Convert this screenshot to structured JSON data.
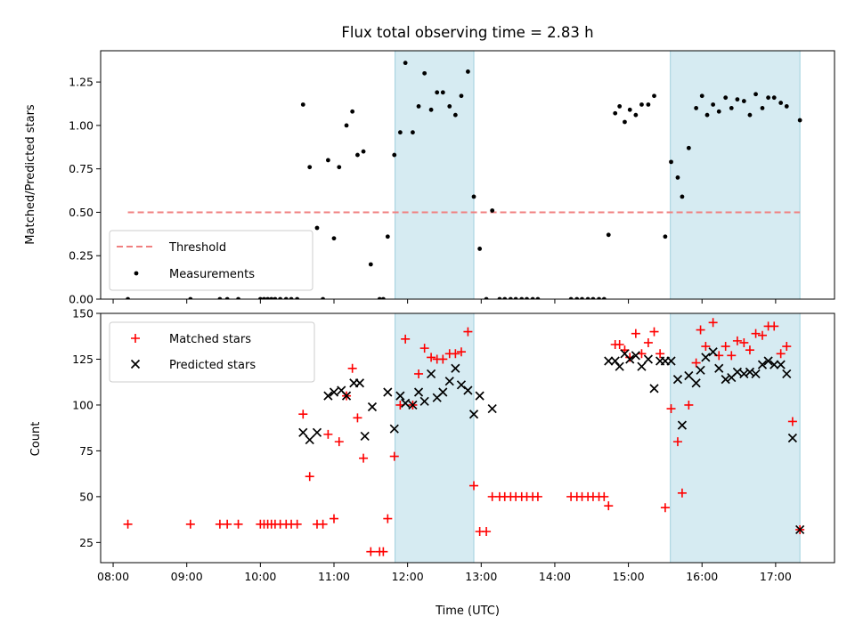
{
  "chart_data": [
    {
      "type": "scatter",
      "title": "Flux total observing time = 2.83 h",
      "xlabel": "",
      "ylabel": "Matched/Predicted stars",
      "xlim": [
        7.83,
        17.8
      ],
      "ylim": [
        0,
        1.43
      ],
      "xticks": [
        8,
        9,
        10,
        11,
        12,
        13,
        14,
        15,
        16,
        17
      ],
      "yticks": [
        0.0,
        0.25,
        0.5,
        0.75,
        1.0,
        1.25
      ],
      "ytick_labels": [
        "0.00",
        "0.25",
        "0.50",
        "0.75",
        "1.00",
        "1.25"
      ],
      "shaded_spans": [
        [
          11.83,
          12.9
        ],
        [
          15.57,
          17.33
        ]
      ],
      "threshold": {
        "name": "Threshold",
        "value": 0.5,
        "x_range": [
          8.2,
          17.33
        ],
        "color": "#f08080"
      },
      "legend_position": "lower-left",
      "series": [
        {
          "name": "Measurements",
          "color": "#000000",
          "marker": "dot",
          "points": [
            [
              8.2,
              0
            ],
            [
              9.05,
              0
            ],
            [
              9.45,
              0
            ],
            [
              9.55,
              0
            ],
            [
              9.7,
              0
            ],
            [
              10.0,
              0
            ],
            [
              10.05,
              0
            ],
            [
              10.1,
              0
            ],
            [
              10.15,
              0
            ],
            [
              10.2,
              0
            ],
            [
              10.27,
              0
            ],
            [
              10.35,
              0
            ],
            [
              10.42,
              0
            ],
            [
              10.5,
              0
            ],
            [
              10.58,
              1.12
            ],
            [
              10.67,
              0.76
            ],
            [
              10.77,
              0.41
            ],
            [
              10.85,
              0
            ],
            [
              10.92,
              0.8
            ],
            [
              11.0,
              0.35
            ],
            [
              11.07,
              0.76
            ],
            [
              11.17,
              1.0
            ],
            [
              11.25,
              1.08
            ],
            [
              11.32,
              0.83
            ],
            [
              11.4,
              0.85
            ],
            [
              11.5,
              0.2
            ],
            [
              11.62,
              0
            ],
            [
              11.67,
              0
            ],
            [
              11.73,
              0.36
            ],
            [
              11.82,
              0.83
            ],
            [
              11.9,
              0.96
            ],
            [
              11.97,
              1.36
            ],
            [
              12.07,
              0.96
            ],
            [
              12.15,
              1.11
            ],
            [
              12.23,
              1.3
            ],
            [
              12.32,
              1.09
            ],
            [
              12.4,
              1.19
            ],
            [
              12.48,
              1.19
            ],
            [
              12.57,
              1.11
            ],
            [
              12.65,
              1.06
            ],
            [
              12.73,
              1.17
            ],
            [
              12.82,
              1.31
            ],
            [
              12.9,
              0.59
            ],
            [
              12.98,
              0.29
            ],
            [
              13.07,
              0
            ],
            [
              13.15,
              0.51
            ],
            [
              13.25,
              0
            ],
            [
              13.32,
              0
            ],
            [
              13.4,
              0
            ],
            [
              13.47,
              0
            ],
            [
              13.55,
              0
            ],
            [
              13.62,
              0
            ],
            [
              13.7,
              0
            ],
            [
              13.77,
              0
            ],
            [
              14.22,
              0
            ],
            [
              14.3,
              0
            ],
            [
              14.37,
              0
            ],
            [
              14.45,
              0
            ],
            [
              14.52,
              0
            ],
            [
              14.6,
              0
            ],
            [
              14.67,
              0
            ],
            [
              14.73,
              0.37
            ],
            [
              14.82,
              1.07
            ],
            [
              14.88,
              1.11
            ],
            [
              14.95,
              1.02
            ],
            [
              15.02,
              1.09
            ],
            [
              15.1,
              1.06
            ],
            [
              15.18,
              1.12
            ],
            [
              15.27,
              1.12
            ],
            [
              15.35,
              1.17
            ],
            [
              15.5,
              0.36
            ],
            [
              15.58,
              0.79
            ],
            [
              15.67,
              0.7
            ],
            [
              15.73,
              0.59
            ],
            [
              15.82,
              0.87
            ],
            [
              15.92,
              1.1
            ],
            [
              16.0,
              1.17
            ],
            [
              16.07,
              1.06
            ],
            [
              16.15,
              1.12
            ],
            [
              16.23,
              1.08
            ],
            [
              16.32,
              1.16
            ],
            [
              16.4,
              1.1
            ],
            [
              16.48,
              1.15
            ],
            [
              16.57,
              1.14
            ],
            [
              16.65,
              1.06
            ],
            [
              16.73,
              1.18
            ],
            [
              16.82,
              1.1
            ],
            [
              16.9,
              1.16
            ],
            [
              16.98,
              1.16
            ],
            [
              17.07,
              1.13
            ],
            [
              17.15,
              1.11
            ],
            [
              17.33,
              1.03
            ]
          ]
        }
      ]
    },
    {
      "type": "scatter",
      "title": "",
      "xlabel": "Time (UTC)",
      "ylabel": "Count",
      "xlim": [
        7.83,
        17.8
      ],
      "ylim": [
        14,
        150
      ],
      "xticks": [
        8,
        9,
        10,
        11,
        12,
        13,
        14,
        15,
        16,
        17
      ],
      "xtick_labels": [
        "08:00",
        "09:00",
        "10:00",
        "11:00",
        "12:00",
        "13:00",
        "14:00",
        "15:00",
        "16:00",
        "17:00"
      ],
      "yticks": [
        25,
        50,
        75,
        100,
        125,
        150
      ],
      "shaded_spans": [
        [
          11.83,
          12.9
        ],
        [
          15.57,
          17.33
        ]
      ],
      "legend_position": "upper-left",
      "series": [
        {
          "name": "Matched stars",
          "color": "#ff0000",
          "marker": "plus",
          "points": [
            [
              8.2,
              35
            ],
            [
              9.05,
              35
            ],
            [
              9.45,
              35
            ],
            [
              9.55,
              35
            ],
            [
              9.7,
              35
            ],
            [
              10.0,
              35
            ],
            [
              10.05,
              35
            ],
            [
              10.1,
              35
            ],
            [
              10.15,
              35
            ],
            [
              10.2,
              35
            ],
            [
              10.27,
              35
            ],
            [
              10.35,
              35
            ],
            [
              10.42,
              35
            ],
            [
              10.5,
              35
            ],
            [
              10.58,
              95
            ],
            [
              10.67,
              61
            ],
            [
              10.77,
              35
            ],
            [
              10.85,
              35
            ],
            [
              10.92,
              84
            ],
            [
              11.0,
              38
            ],
            [
              11.07,
              80
            ],
            [
              11.17,
              105
            ],
            [
              11.25,
              120
            ],
            [
              11.32,
              93
            ],
            [
              11.4,
              71
            ],
            [
              11.5,
              20
            ],
            [
              11.62,
              20
            ],
            [
              11.67,
              20
            ],
            [
              11.73,
              38
            ],
            [
              11.82,
              72
            ],
            [
              11.9,
              100
            ],
            [
              11.97,
              136
            ],
            [
              12.07,
              100
            ],
            [
              12.15,
              117
            ],
            [
              12.23,
              131
            ],
            [
              12.32,
              126
            ],
            [
              12.4,
              125
            ],
            [
              12.48,
              125
            ],
            [
              12.57,
              128
            ],
            [
              12.65,
              128
            ],
            [
              12.73,
              129
            ],
            [
              12.82,
              140
            ],
            [
              12.9,
              56
            ],
            [
              12.98,
              31
            ],
            [
              13.07,
              31
            ],
            [
              13.15,
              50
            ],
            [
              13.25,
              50
            ],
            [
              13.32,
              50
            ],
            [
              13.4,
              50
            ],
            [
              13.47,
              50
            ],
            [
              13.55,
              50
            ],
            [
              13.62,
              50
            ],
            [
              13.7,
              50
            ],
            [
              13.77,
              50
            ],
            [
              14.22,
              50
            ],
            [
              14.3,
              50
            ],
            [
              14.37,
              50
            ],
            [
              14.45,
              50
            ],
            [
              14.52,
              50
            ],
            [
              14.6,
              50
            ],
            [
              14.67,
              50
            ],
            [
              14.73,
              45
            ],
            [
              14.82,
              133
            ],
            [
              14.88,
              133
            ],
            [
              14.95,
              130
            ],
            [
              15.02,
              126
            ],
            [
              15.1,
              139
            ],
            [
              15.18,
              128
            ],
            [
              15.27,
              134
            ],
            [
              15.35,
              140
            ],
            [
              15.43,
              128
            ],
            [
              15.5,
              44
            ],
            [
              15.58,
              98
            ],
            [
              15.67,
              80
            ],
            [
              15.73,
              52
            ],
            [
              15.82,
              100
            ],
            [
              15.92,
              123
            ],
            [
              15.98,
              141
            ],
            [
              16.05,
              132
            ],
            [
              16.15,
              145
            ],
            [
              16.23,
              127
            ],
            [
              16.32,
              132
            ],
            [
              16.4,
              127
            ],
            [
              16.48,
              135
            ],
            [
              16.57,
              134
            ],
            [
              16.65,
              130
            ],
            [
              16.73,
              139
            ],
            [
              16.82,
              138
            ],
            [
              16.9,
              143
            ],
            [
              16.98,
              143
            ],
            [
              17.07,
              128
            ],
            [
              17.15,
              132
            ],
            [
              17.23,
              91
            ],
            [
              17.33,
              32
            ]
          ]
        },
        {
          "name": "Predicted stars",
          "color": "#000000",
          "marker": "x",
          "points": [
            [
              10.58,
              85
            ],
            [
              10.67,
              81
            ],
            [
              10.77,
              85
            ],
            [
              10.92,
              105
            ],
            [
              11.0,
              107
            ],
            [
              11.1,
              108
            ],
            [
              11.17,
              105
            ],
            [
              11.27,
              112
            ],
            [
              11.35,
              112
            ],
            [
              11.42,
              83
            ],
            [
              11.52,
              99
            ],
            [
              11.73,
              107
            ],
            [
              11.82,
              87
            ],
            [
              11.9,
              105
            ],
            [
              11.97,
              101
            ],
            [
              12.07,
              100
            ],
            [
              12.15,
              107
            ],
            [
              12.23,
              102
            ],
            [
              12.32,
              117
            ],
            [
              12.4,
              104
            ],
            [
              12.48,
              107
            ],
            [
              12.57,
              113
            ],
            [
              12.65,
              120
            ],
            [
              12.73,
              111
            ],
            [
              12.82,
              108
            ],
            [
              12.9,
              95
            ],
            [
              12.98,
              105
            ],
            [
              13.15,
              98
            ],
            [
              14.73,
              124
            ],
            [
              14.82,
              124
            ],
            [
              14.88,
              121
            ],
            [
              14.95,
              128
            ],
            [
              15.02,
              125
            ],
            [
              15.1,
              127
            ],
            [
              15.18,
              121
            ],
            [
              15.27,
              125
            ],
            [
              15.35,
              109
            ],
            [
              15.43,
              124
            ],
            [
              15.5,
              124
            ],
            [
              15.58,
              124
            ],
            [
              15.67,
              114
            ],
            [
              15.73,
              89
            ],
            [
              15.82,
              116
            ],
            [
              15.92,
              112
            ],
            [
              15.98,
              119
            ],
            [
              16.05,
              126
            ],
            [
              16.15,
              129
            ],
            [
              16.23,
              120
            ],
            [
              16.32,
              114
            ],
            [
              16.4,
              115
            ],
            [
              16.48,
              118
            ],
            [
              16.57,
              117
            ],
            [
              16.65,
              118
            ],
            [
              16.73,
              117
            ],
            [
              16.82,
              122
            ],
            [
              16.9,
              124
            ],
            [
              16.98,
              122
            ],
            [
              17.07,
              122
            ],
            [
              17.15,
              117
            ],
            [
              17.23,
              82
            ],
            [
              17.33,
              32
            ]
          ]
        }
      ]
    }
  ]
}
